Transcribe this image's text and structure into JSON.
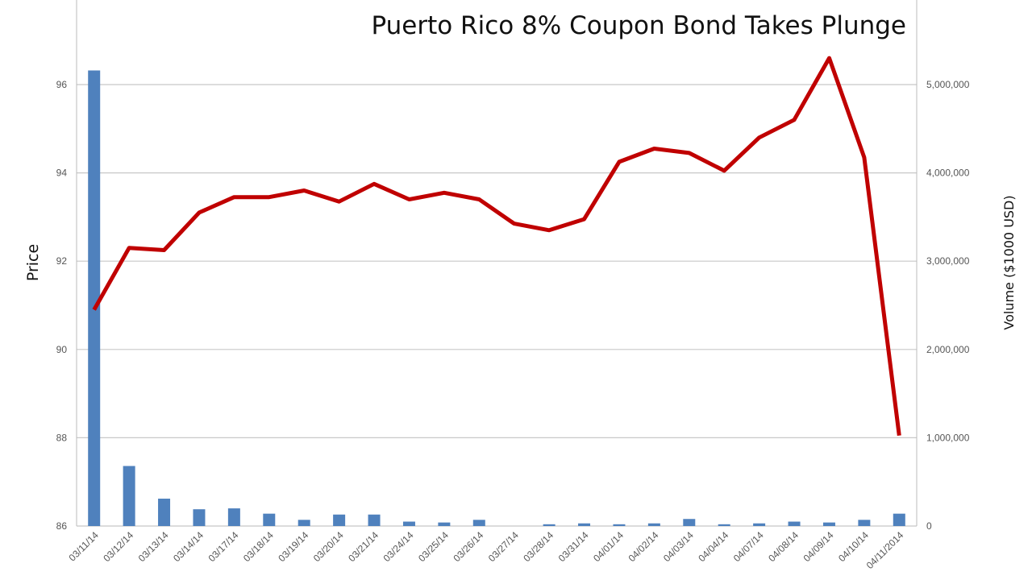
{
  "chart_data": {
    "type": "bar+line",
    "title": "Puerto Rico 8% Coupon Bond Takes Plunge",
    "ylabel_left": "Price",
    "ylabel_right": "Volume ($1000 USD)",
    "ylim_left": [
      86,
      98
    ],
    "ylim_right": [
      0,
      6000000
    ],
    "yticks_left": [
      "86",
      "88",
      "90",
      "92",
      "94",
      "96"
    ],
    "yticks_right": [
      "0",
      "1,000,000",
      "2,000,000",
      "3,000,000",
      "4,000,000",
      "5,000,000"
    ],
    "grid": true,
    "categories": [
      "03/11/14",
      "03/12/14",
      "03/13/14",
      "03/14/14",
      "03/17/14",
      "03/18/14",
      "03/19/14",
      "03/20/14",
      "03/21/14",
      "03/24/14",
      "03/25/14",
      "03/26/14",
      "03/27/14",
      "03/28/14",
      "03/31/14",
      "04/01/14",
      "04/02/14",
      "04/03/14",
      "04/04/14",
      "04/07/14",
      "04/08/14",
      "04/09/14",
      "04/10/14",
      "04/11/2014"
    ],
    "series": [
      {
        "kind": "bar",
        "axis": "right",
        "color": "#4f81bd",
        "values": [
          5160000,
          680000,
          310000,
          190000,
          200000,
          140000,
          70000,
          130000,
          130000,
          50000,
          40000,
          70000,
          0,
          20000,
          30000,
          20000,
          30000,
          80000,
          20000,
          30000,
          50000,
          40000,
          70000,
          140000
        ]
      },
      {
        "kind": "line",
        "axis": "left",
        "color": "#c00000",
        "values": [
          90.9,
          92.3,
          92.25,
          93.1,
          93.45,
          93.45,
          93.6,
          93.35,
          93.75,
          93.4,
          93.55,
          93.4,
          92.85,
          92.7,
          92.95,
          94.25,
          94.55,
          94.45,
          94.05,
          94.8,
          95.2,
          96.6,
          94.35,
          88.05
        ]
      }
    ]
  }
}
